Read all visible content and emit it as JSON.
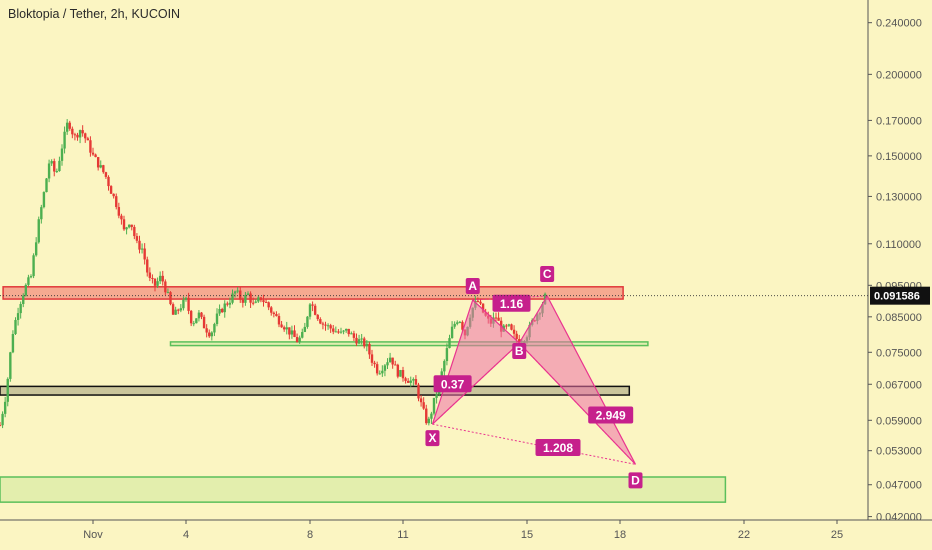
{
  "header": {
    "title": "Bloktopia / Tether, 2h, KUCOIN"
  },
  "colors": {
    "background": "#FBF5C2",
    "candle_up": "#4CAF50",
    "candle_down": "#E53935",
    "pattern": "#E9348F",
    "pattern_fill": "#EE6FAA",
    "resistance_zone": "#F28A7A",
    "support_zone_green": "#B9E08A",
    "support_zone_dark": "#B5B08A"
  },
  "chart_data": {
    "type": "candlestick",
    "title": "Bloktopia / Tether, 2h, KUCOIN",
    "y_axis": {
      "scale": "log",
      "ticks": [
        0.24,
        0.2,
        0.17,
        0.15,
        0.13,
        0.11,
        0.095,
        0.085,
        0.075,
        0.067,
        0.059,
        0.053,
        0.047,
        0.042
      ],
      "tick_labels": [
        "0.240000",
        "0.200000",
        "0.170000",
        "0.150000",
        "0.130000",
        "0.110000",
        "0.095000",
        "0.085000",
        "0.075000",
        "0.067000",
        "0.059000",
        "0.053000",
        "0.047000",
        "0.042000"
      ],
      "range": [
        0.0415,
        0.26
      ]
    },
    "x_axis": {
      "range_days": [
        29,
        57
      ],
      "ticks": [
        {
          "day": 32,
          "label": "Nov"
        },
        {
          "day": 35,
          "label": "4"
        },
        {
          "day": 39,
          "label": "8"
        },
        {
          "day": 42,
          "label": "11"
        },
        {
          "day": 46,
          "label": "15"
        },
        {
          "day": 49,
          "label": "18"
        },
        {
          "day": 53,
          "label": "22"
        },
        {
          "day": 56,
          "label": "25"
        }
      ]
    },
    "current_price": {
      "value": 0.091586,
      "label": "0.091586"
    },
    "price_path": [
      [
        29.0,
        0.058
      ],
      [
        29.2,
        0.065
      ],
      [
        29.4,
        0.08
      ],
      [
        29.6,
        0.088
      ],
      [
        29.8,
        0.094
      ],
      [
        30.0,
        0.098
      ],
      [
        30.2,
        0.115
      ],
      [
        30.4,
        0.13
      ],
      [
        30.6,
        0.148
      ],
      [
        30.8,
        0.14
      ],
      [
        31.0,
        0.155
      ],
      [
        31.2,
        0.17
      ],
      [
        31.4,
        0.16
      ],
      [
        31.6,
        0.165
      ],
      [
        31.8,
        0.158
      ],
      [
        32.0,
        0.15
      ],
      [
        32.2,
        0.145
      ],
      [
        32.4,
        0.14
      ],
      [
        32.6,
        0.132
      ],
      [
        32.8,
        0.125
      ],
      [
        33.0,
        0.115
      ],
      [
        33.2,
        0.12
      ],
      [
        33.4,
        0.11
      ],
      [
        33.6,
        0.108
      ],
      [
        33.8,
        0.097
      ],
      [
        34.0,
        0.095
      ],
      [
        34.2,
        0.098
      ],
      [
        34.4,
        0.092
      ],
      [
        34.6,
        0.085
      ],
      [
        34.8,
        0.088
      ],
      [
        35.0,
        0.09
      ],
      [
        35.2,
        0.083
      ],
      [
        35.4,
        0.086
      ],
      [
        35.6,
        0.082
      ],
      [
        35.8,
        0.08
      ],
      [
        36.0,
        0.085
      ],
      [
        36.2,
        0.088
      ],
      [
        36.4,
        0.09
      ],
      [
        36.6,
        0.093
      ],
      [
        36.8,
        0.09
      ],
      [
        37.0,
        0.092
      ],
      [
        37.2,
        0.088
      ],
      [
        37.4,
        0.091
      ],
      [
        37.6,
        0.089
      ],
      [
        37.8,
        0.086
      ],
      [
        38.0,
        0.084
      ],
      [
        38.2,
        0.082
      ],
      [
        38.4,
        0.08
      ],
      [
        38.6,
        0.078
      ],
      [
        38.8,
        0.08
      ],
      [
        39.0,
        0.09
      ],
      [
        39.2,
        0.086
      ],
      [
        39.4,
        0.083
      ],
      [
        39.6,
        0.082
      ],
      [
        39.8,
        0.081
      ],
      [
        40.0,
        0.08
      ],
      [
        40.2,
        0.081
      ],
      [
        40.4,
        0.079
      ],
      [
        40.6,
        0.078
      ],
      [
        40.8,
        0.077
      ],
      [
        41.0,
        0.073
      ],
      [
        41.2,
        0.07
      ],
      [
        41.4,
        0.072
      ],
      [
        41.6,
        0.074
      ],
      [
        41.8,
        0.07
      ],
      [
        42.0,
        0.069
      ],
      [
        42.2,
        0.068
      ],
      [
        42.4,
        0.067
      ],
      [
        42.6,
        0.062
      ],
      [
        42.8,
        0.058
      ],
      [
        43.0,
        0.063
      ],
      [
        43.2,
        0.068
      ],
      [
        43.4,
        0.075
      ],
      [
        43.6,
        0.082
      ],
      [
        43.8,
        0.085
      ],
      [
        44.0,
        0.08
      ],
      [
        44.2,
        0.087
      ],
      [
        44.4,
        0.09
      ],
      [
        44.6,
        0.086
      ],
      [
        44.8,
        0.083
      ],
      [
        45.0,
        0.085
      ],
      [
        45.2,
        0.081
      ],
      [
        45.4,
        0.082
      ],
      [
        45.6,
        0.079
      ],
      [
        45.8,
        0.078
      ],
      [
        46.0,
        0.08
      ],
      [
        46.2,
        0.084
      ],
      [
        46.4,
        0.087
      ],
      [
        46.6,
        0.091586
      ]
    ],
    "zones": [
      {
        "name": "resistance",
        "day_start": 29.1,
        "day_end": 49.1,
        "price_low": 0.0905,
        "price_high": 0.0945,
        "fill": "#F28A7A",
        "stroke": "#E0383A"
      },
      {
        "name": "support-mid",
        "day_start": 34.5,
        "day_end": 49.9,
        "price_low": 0.0768,
        "price_high": 0.0778,
        "fill": "#D5E9A6",
        "stroke": "#5BBF5B"
      },
      {
        "name": "support-dark",
        "day_start": 29.0,
        "day_end": 49.3,
        "price_low": 0.0645,
        "price_high": 0.0665,
        "fill": "#B5B08A",
        "stroke": "#111111"
      },
      {
        "name": "support-low",
        "day_start": 29.0,
        "day_end": 52.4,
        "price_low": 0.0442,
        "price_high": 0.0483,
        "fill": "#D8EBA4",
        "stroke": "#5BBF5B"
      }
    ],
    "pattern": {
      "points": [
        {
          "label": "X",
          "day": 42.95,
          "price": 0.0582
        },
        {
          "label": "A",
          "day": 44.25,
          "price": 0.0902
        },
        {
          "label": "B",
          "day": 45.75,
          "price": 0.0775
        },
        {
          "label": "C",
          "day": 46.65,
          "price": 0.0915
        },
        {
          "label": "D",
          "day": 49.5,
          "price": 0.0505
        }
      ],
      "ratios": [
        {
          "label": "0.37",
          "day": 43.6,
          "price": 0.067
        },
        {
          "label": "1.16",
          "day": 45.5,
          "price": 0.089
        },
        {
          "label": "2.949",
          "day": 48.7,
          "price": 0.06
        },
        {
          "label": "1.208",
          "day": 47.0,
          "price": 0.0535
        }
      ]
    }
  }
}
